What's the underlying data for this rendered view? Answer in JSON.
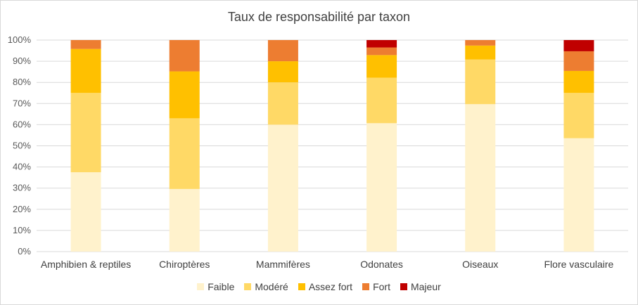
{
  "chart_data": {
    "type": "bar",
    "stacked": true,
    "percent": true,
    "title": "Taux de responsabilité par taxon",
    "categories": [
      "Amphibien & reptiles",
      "Chiroptères",
      "Mammifères",
      "Odonates",
      "Oiseaux",
      "Flore vasculaire"
    ],
    "y_ticks": [
      "0%",
      "10%",
      "20%",
      "30%",
      "40%",
      "50%",
      "60%",
      "70%",
      "80%",
      "90%",
      "100%"
    ],
    "ylim": [
      0,
      100
    ],
    "grid": true,
    "legend_position": "bottom",
    "series": [
      {
        "name": "Faible",
        "color": "#FFF2CC",
        "values": [
          37.5,
          29.6,
          60,
          60.7,
          69.7,
          53.6
        ]
      },
      {
        "name": "Modéré",
        "color": "#FFD966",
        "values": [
          37.5,
          33.4,
          20,
          21.5,
          21.1,
          21.4
        ]
      },
      {
        "name": "Assez fort",
        "color": "#FFC000",
        "values": [
          20.8,
          22.2,
          10,
          10.7,
          6.6,
          10.4
        ]
      },
      {
        "name": "Fort",
        "color": "#ED7D31",
        "values": [
          4.2,
          14.8,
          10,
          3.6,
          2.6,
          9.3
        ]
      },
      {
        "name": "Majeur",
        "color": "#C00000",
        "values": [
          0,
          0,
          0,
          3.5,
          0,
          5.3
        ]
      }
    ]
  }
}
